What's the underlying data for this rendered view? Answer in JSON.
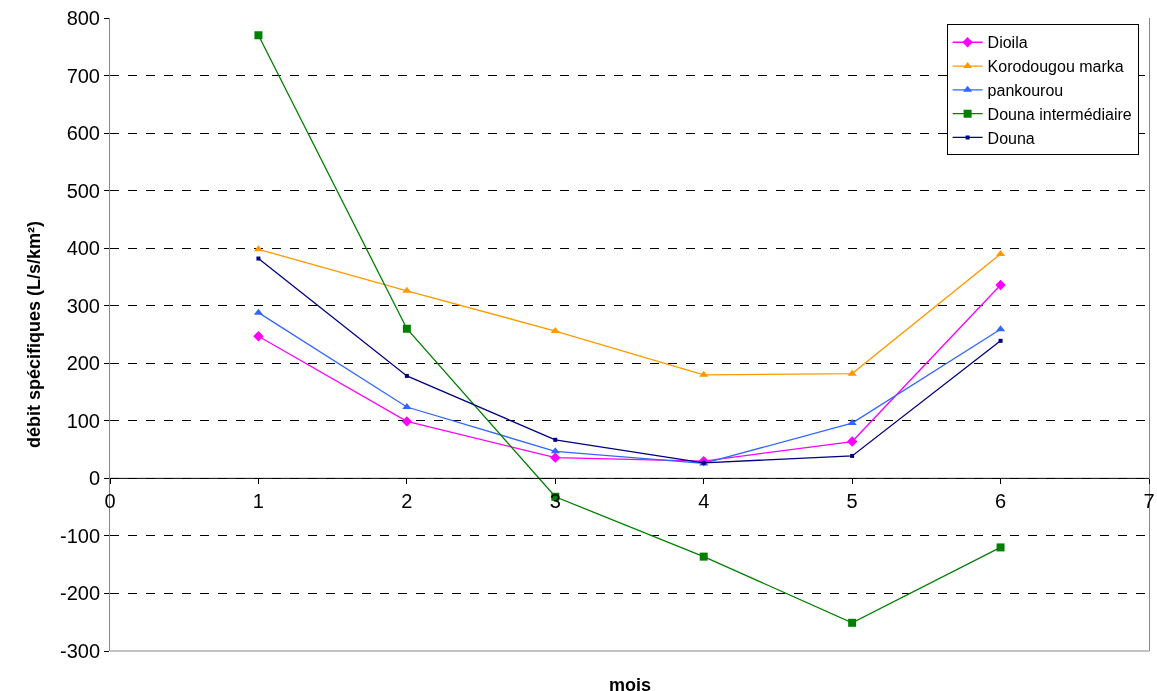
{
  "chart_data": {
    "type": "line",
    "xlabel": "mois",
    "ylabel": "débit spécifiques (L/s/km²)",
    "x": [
      1,
      2,
      3,
      4,
      5,
      6
    ],
    "series": [
      {
        "name": "Dioila",
        "color": "#ff00ff",
        "marker": "diamond",
        "values": [
          247,
          99,
          36,
          30,
          64,
          336
        ]
      },
      {
        "name": "Korodougou marka",
        "color": "#ff9900",
        "marker": "triangle",
        "values": [
          398,
          326,
          256,
          180,
          182,
          390
        ]
      },
      {
        "name": "pankourou",
        "color": "#3366ff",
        "marker": "triangle",
        "values": [
          288,
          124,
          47,
          26,
          96,
          259
        ]
      },
      {
        "name": "Douna intermédiaire",
        "color": "#008000",
        "marker": "square",
        "values": [
          770,
          260,
          -32,
          -136,
          -251,
          -120
        ]
      },
      {
        "name": "Douna",
        "color": "#000080",
        "marker": "square",
        "values": [
          382,
          178,
          67,
          27,
          39,
          239
        ]
      }
    ],
    "xlim": [
      0,
      7
    ],
    "xticks": [
      0,
      1,
      2,
      3,
      4,
      5,
      6,
      7
    ],
    "ylim": [
      -300,
      800
    ],
    "yticks": [
      -300,
      -200,
      -100,
      0,
      100,
      200,
      300,
      400,
      500,
      600,
      700,
      800
    ],
    "grid": "y",
    "legend": "top right",
    "line_style": "solid"
  }
}
